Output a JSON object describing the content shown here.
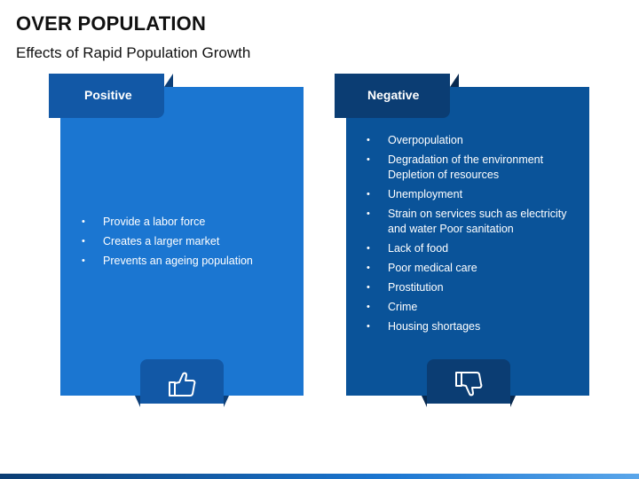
{
  "header": {
    "title": "OVER POPULATION",
    "subtitle": "Effects of Rapid Population Growth"
  },
  "positive": {
    "label": "Positive",
    "icon": "thumbs-up-icon",
    "color": "#1b76d1",
    "items": [
      "Provide a labor force",
      "Creates a larger market",
      "Prevents an ageing population"
    ]
  },
  "negative": {
    "label": "Negative",
    "icon": "thumbs-down-icon",
    "color": "#0a5399",
    "items": [
      "Overpopulation",
      "Degradation of the environment Depletion of resources",
      "Unemployment",
      "Strain on services such as electricity and water Poor sanitation",
      "Lack of food",
      "Poor medical care",
      "Prostitution",
      "Crime",
      "Housing shortages"
    ]
  }
}
